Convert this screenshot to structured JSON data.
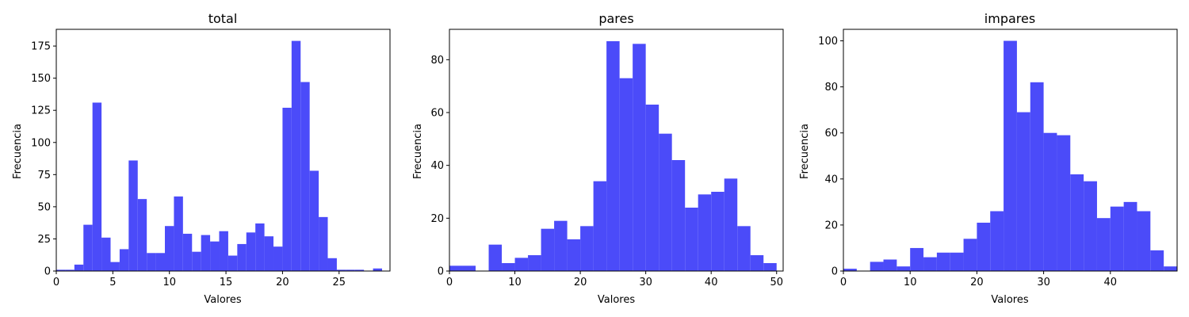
{
  "chart_data": [
    {
      "type": "histogram",
      "title": "total",
      "xlabel": "Valores",
      "ylabel": "Frecuencia",
      "xlim": [
        0,
        29.5
      ],
      "ylim": [
        0,
        188
      ],
      "xticks": [
        0,
        5,
        10,
        15,
        20,
        25
      ],
      "yticks": [
        0,
        25,
        50,
        75,
        100,
        125,
        150,
        175
      ],
      "bin_width": 0.8,
      "bin_starts": [
        0,
        0.8,
        1.6,
        2.4,
        3.2,
        4.0,
        4.8,
        5.6,
        6.4,
        7.2,
        8.0,
        8.8,
        9.6,
        10.4,
        11.2,
        12.0,
        12.8,
        13.6,
        14.4,
        15.2,
        16.0,
        16.8,
        17.6,
        18.4,
        19.2,
        20.0,
        20.8,
        21.6,
        22.4,
        23.2,
        24.0,
        24.8,
        25.6,
        26.4,
        27.2,
        28.0
      ],
      "values": [
        1,
        1,
        5,
        36,
        131,
        26,
        7,
        17,
        86,
        56,
        14,
        14,
        35,
        58,
        29,
        15,
        28,
        23,
        31,
        12,
        21,
        30,
        37,
        27,
        19,
        127,
        179,
        147,
        78,
        42,
        10,
        1,
        1,
        1,
        0,
        2
      ],
      "color": "#4b4bf9"
    },
    {
      "type": "histogram",
      "title": "pares",
      "xlabel": "Valores",
      "ylabel": "Frecuencia",
      "xlim": [
        0,
        51
      ],
      "ylim": [
        0,
        91.5
      ],
      "xticks": [
        0,
        10,
        20,
        30,
        40,
        50
      ],
      "yticks": [
        0,
        20,
        40,
        60,
        80
      ],
      "bin_width": 2,
      "bin_starts": [
        0,
        2,
        4,
        6,
        8,
        10,
        12,
        14,
        16,
        18,
        20,
        22,
        24,
        26,
        28,
        30,
        32,
        34,
        36,
        38,
        40,
        42,
        44,
        46,
        48
      ],
      "values": [
        2,
        2,
        0,
        10,
        3,
        5,
        6,
        16,
        19,
        12,
        17,
        34,
        87,
        73,
        86,
        63,
        52,
        42,
        24,
        29,
        30,
        35,
        17,
        6,
        3
      ],
      "color": "#4b4bf9"
    },
    {
      "type": "histogram",
      "title": "impares",
      "xlabel": "Valores",
      "ylabel": "Frecuencia",
      "xlim": [
        0,
        50
      ],
      "ylim": [
        0,
        105
      ],
      "xticks": [
        0,
        10,
        20,
        30,
        40
      ],
      "yticks": [
        0,
        20,
        40,
        60,
        80,
        100
      ],
      "bin_width": 2,
      "bin_starts": [
        0,
        2,
        4,
        6,
        8,
        10,
        12,
        14,
        16,
        18,
        20,
        22,
        24,
        26,
        28,
        30,
        32,
        34,
        36,
        38,
        40,
        42,
        44,
        46,
        48
      ],
      "values": [
        1,
        0,
        4,
        5,
        2,
        10,
        6,
        8,
        8,
        14,
        21,
        26,
        100,
        69,
        82,
        60,
        59,
        42,
        39,
        23,
        28,
        30,
        26,
        9,
        2
      ],
      "color": "#4b4bf9"
    }
  ]
}
